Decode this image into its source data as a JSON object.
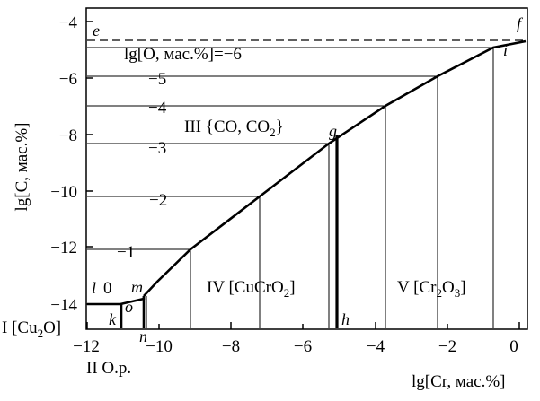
{
  "diagram": {
    "axes": {
      "x_label": "lg[Cr, мас.%]",
      "y_label": "lg[C, мас.%]",
      "x_ticks": [
        "−12",
        "−10",
        "−8",
        "−6",
        "−4",
        "−2",
        "0"
      ],
      "y_ticks": [
        "−4",
        "−6",
        "−8",
        "−10",
        "−12",
        "−14"
      ]
    },
    "regions": {
      "r1_prefix": "I [Cu",
      "r1_sub": "2",
      "r1_suffix": "O]",
      "r2": "II О.р.",
      "r3_main": "III {CO, CO",
      "r3_sub": "2",
      "r3_end": "}",
      "r4_main": "IV [CuCrO",
      "r4_sub": "2",
      "r4_end": "]",
      "r5_main": "V [Cr",
      "r5_sub": "2",
      "r5_mid": "O",
      "r5_sub2": "3",
      "r5_end": "]"
    },
    "isolines": {
      "title": "lg[O, мас.%]=−6",
      "labels": [
        "−5",
        "−4",
        "−3",
        "−2",
        "−1",
        "0"
      ]
    },
    "points": {
      "e": "e",
      "f": "f",
      "i": "i",
      "g": "g",
      "h": "h",
      "l": "l",
      "m": "m",
      "o": "o",
      "k": "k",
      "n": "n"
    }
  }
}
